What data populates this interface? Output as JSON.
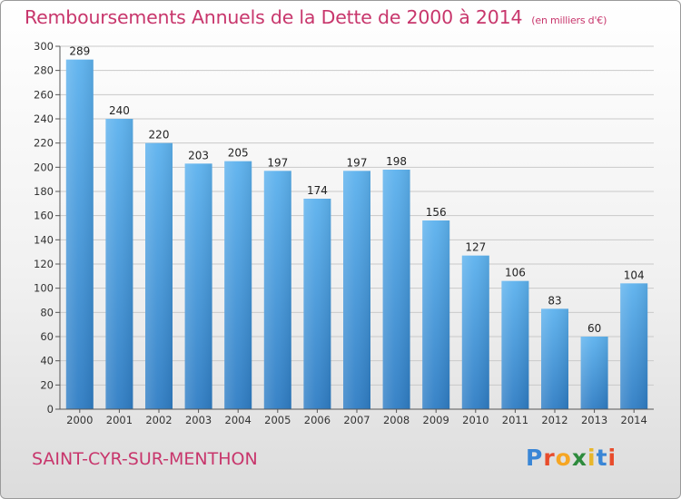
{
  "chart_data": {
    "type": "bar",
    "title": "Remboursements Annuels de la Dette de 2000 à 2014",
    "unit_note": "(en milliers d'€)",
    "categories": [
      "2000",
      "2001",
      "2002",
      "2003",
      "2004",
      "2005",
      "2006",
      "2007",
      "2008",
      "2009",
      "2010",
      "2011",
      "2012",
      "2013",
      "2014"
    ],
    "values": [
      289,
      240,
      220,
      203,
      205,
      197,
      174,
      197,
      198,
      156,
      127,
      106,
      83,
      60,
      104
    ],
    "ylim": [
      0,
      300
    ],
    "yticks": [
      0,
      20,
      40,
      60,
      80,
      100,
      120,
      140,
      160,
      180,
      200,
      220,
      240,
      260,
      280,
      300
    ],
    "xlabel": "",
    "ylabel": "",
    "grid": true,
    "bar_color": "#4a9fe0"
  },
  "footer": {
    "commune": "SAINT-CYR-SUR-MENTHON",
    "logo_letters": [
      "P",
      "r",
      "o",
      "x",
      "i",
      "t",
      "i"
    ]
  }
}
